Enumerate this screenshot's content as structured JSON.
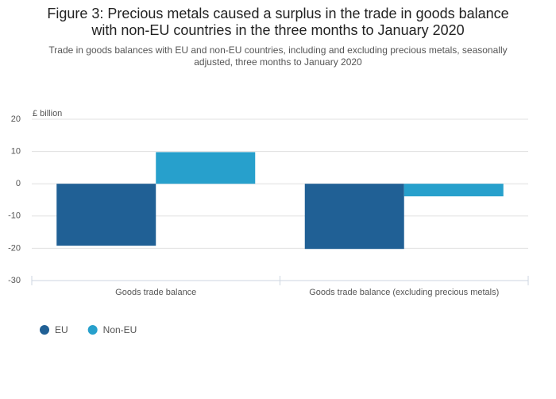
{
  "chart_data": {
    "type": "bar",
    "title": [
      "Figure 3: Precious metals caused a surplus in the trade in goods balance",
      "with non-EU countries in the three months to January 2020"
    ],
    "subtitle": [
      "Trade in goods balances with EU and non-EU countries, including and excluding precious metals, seasonally",
      "adjusted, three months to January 2020"
    ],
    "y_label": "£ billion",
    "categories": [
      "Goods trade balance",
      "Goods trade balance (excluding precious metals)"
    ],
    "series": [
      {
        "name": "EU",
        "color": "#206095",
        "values": [
          -19.2,
          -20.2
        ]
      },
      {
        "name": "Non-EU",
        "color": "#27a0cc",
        "values": [
          9.8,
          -3.9
        ]
      }
    ],
    "ylim": [
      -30,
      20
    ],
    "yticks": [
      -30,
      -20,
      -10,
      0,
      10,
      20
    ],
    "grid": true,
    "legend": "bottom-left"
  }
}
